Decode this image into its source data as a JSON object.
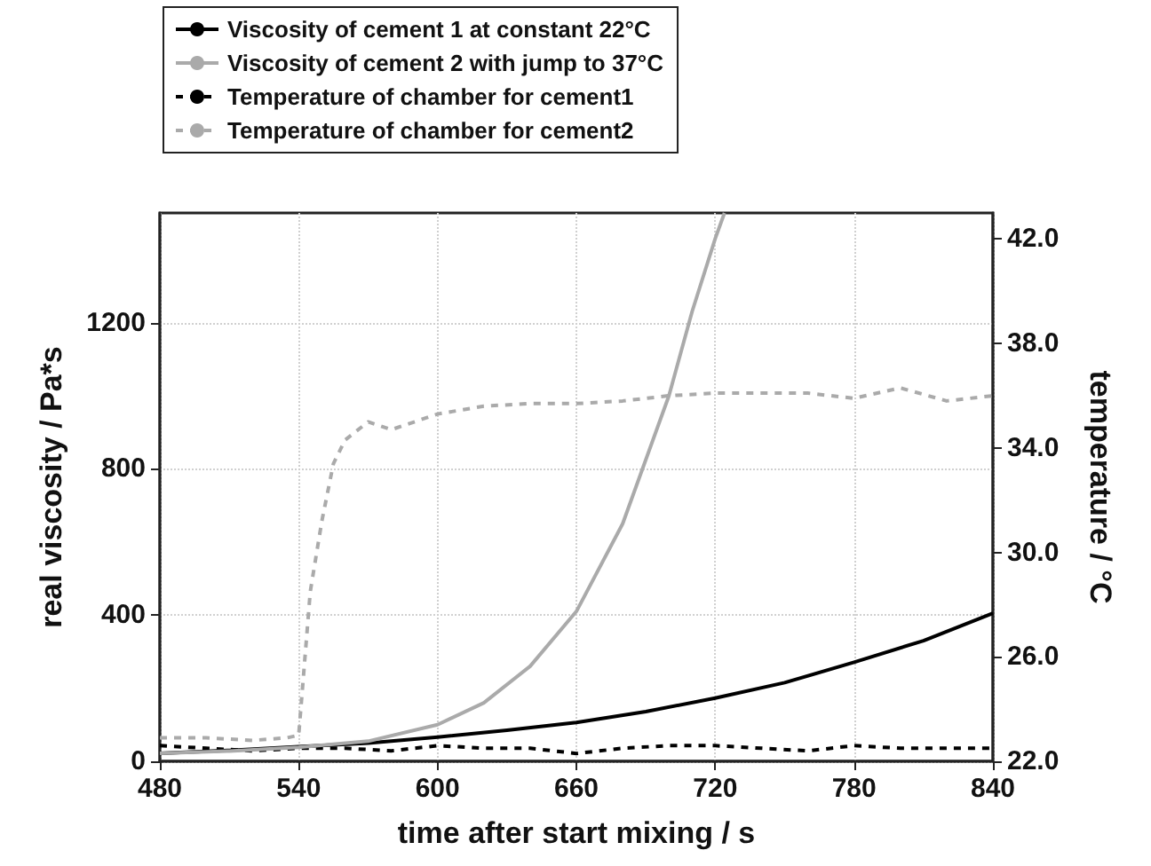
{
  "chart_data": {
    "type": "line",
    "xlabel": "time after start mixing / s",
    "ylabel": "real viscosity / Pa*s",
    "y2label": "temperature / °C",
    "xlim": [
      480,
      840
    ],
    "xticks": [
      480,
      540,
      600,
      660,
      720,
      780,
      840
    ],
    "ylim": [
      0,
      1500
    ],
    "yticks": [
      0,
      400,
      800,
      1200
    ],
    "y2lim": [
      22,
      43
    ],
    "y2ticks": [
      {
        "value": 22,
        "label": "22.0"
      },
      {
        "value": 26,
        "label": "26.0"
      },
      {
        "value": 30,
        "label": "30.0"
      },
      {
        "value": 34,
        "label": "34.0"
      },
      {
        "value": 38,
        "label": "38.0"
      },
      {
        "value": 42,
        "label": "42.0"
      }
    ],
    "grid": true,
    "legend": "top left",
    "marker": "none",
    "series": [
      {
        "name": "Viscosity of cement 1 at constant 22°C",
        "color": "#000000",
        "line_style": "solid",
        "x": [
          480,
          510,
          540,
          570,
          600,
          630,
          660,
          690,
          720,
          750,
          780,
          810,
          840
        ],
        "values": [
          22,
          30,
          40,
          50,
          66,
          85,
          106,
          136,
          173,
          215,
          271,
          330,
          405
        ]
      },
      {
        "name": "Viscosity of cement 2 with jump to 37°C",
        "color": "#aaaaaa",
        "line_style": "solid",
        "x": [
          480,
          510,
          540,
          570,
          600,
          620,
          640,
          660,
          680,
          700,
          710,
          720,
          724
        ],
        "values": [
          22,
          28,
          38,
          55,
          100,
          160,
          260,
          410,
          650,
          1000,
          1230,
          1430,
          1500
        ]
      },
      {
        "name": "Temperature of chamber for cement1",
        "color": "#000000",
        "line_style": "dashed",
        "axis": "y2",
        "x": [
          480,
          500,
          520,
          540,
          560,
          580,
          600,
          620,
          640,
          660,
          680,
          700,
          720,
          740,
          760,
          780,
          800,
          820,
          840
        ],
        "values": [
          22.6,
          22.5,
          22.4,
          22.5,
          22.5,
          22.4,
          22.6,
          22.5,
          22.5,
          22.3,
          22.5,
          22.6,
          22.6,
          22.5,
          22.4,
          22.6,
          22.5,
          22.5,
          22.5
        ]
      },
      {
        "name": "Temperature of chamber for cement2",
        "color": "#aaaaaa",
        "line_style": "dashed",
        "axis": "y2",
        "x": [
          480,
          500,
          520,
          535,
          540,
          545,
          550,
          555,
          560,
          570,
          580,
          600,
          620,
          640,
          660,
          680,
          700,
          720,
          740,
          760,
          780,
          800,
          820,
          840
        ],
        "values": [
          22.9,
          22.9,
          22.8,
          22.9,
          23.0,
          28.5,
          31.2,
          33.4,
          34.3,
          35.0,
          34.7,
          35.3,
          35.6,
          35.7,
          35.7,
          35.8,
          36.0,
          36.1,
          36.1,
          36.1,
          35.9,
          36.3,
          35.8,
          36.0
        ]
      }
    ]
  }
}
